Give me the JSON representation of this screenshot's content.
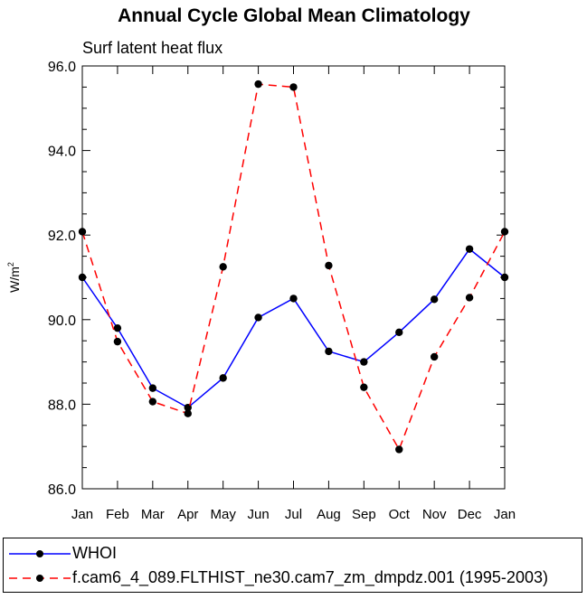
{
  "chart_data": {
    "type": "line",
    "title": "Annual Cycle Global Mean Climatology",
    "subtitle": "Surf latent heat flux",
    "ylabel": "W/m",
    "ylabel_sup": "2",
    "categories": [
      "Jan",
      "Feb",
      "Mar",
      "Apr",
      "May",
      "Jun",
      "Jul",
      "Aug",
      "Sep",
      "Oct",
      "Nov",
      "Dec",
      "Jan"
    ],
    "ylim": [
      86.0,
      96.0
    ],
    "yticks": [
      "86.0",
      "88.0",
      "90.0",
      "92.0",
      "94.0",
      "96.0"
    ],
    "grid": false,
    "legend_placement": "bottom",
    "series": [
      {
        "name": "WHOI",
        "color": "#0000ff",
        "dash": "solid",
        "values": [
          91.0,
          89.8,
          88.38,
          87.92,
          88.62,
          90.05,
          90.5,
          89.25,
          89.0,
          89.7,
          90.48,
          91.67,
          91.0
        ]
      },
      {
        "name": "f.cam6_4_089.FLTHIST_ne30.cam7_zm_dmpdz.001 (1995-2003)",
        "color": "#ff0000",
        "dash": "dashed",
        "values": [
          92.08,
          89.48,
          88.06,
          87.78,
          91.25,
          95.57,
          95.5,
          91.28,
          88.4,
          86.93,
          89.12,
          90.52,
          92.08
        ]
      }
    ]
  }
}
